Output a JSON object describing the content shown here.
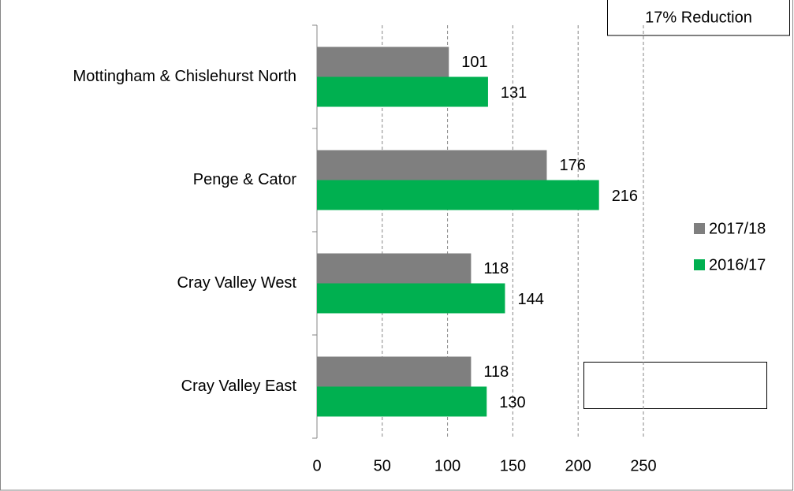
{
  "chart_data": {
    "type": "bar",
    "orientation": "horizontal",
    "annotation": "17% Reduction",
    "categories": [
      "Mottingham & Chislehurst North",
      "Penge & Cator",
      "Cray Valley West",
      "Cray Valley East"
    ],
    "series": [
      {
        "name": "2017/18",
        "color": "#7f7f7f",
        "values": [
          101,
          176,
          118,
          118
        ]
      },
      {
        "name": "2016/17",
        "color": "#00b050",
        "values": [
          131,
          216,
          144,
          130
        ]
      }
    ],
    "xlim": [
      0,
      250
    ],
    "xticks": [
      0,
      50,
      100,
      150,
      200,
      250
    ],
    "grid": true,
    "legend": "right"
  }
}
